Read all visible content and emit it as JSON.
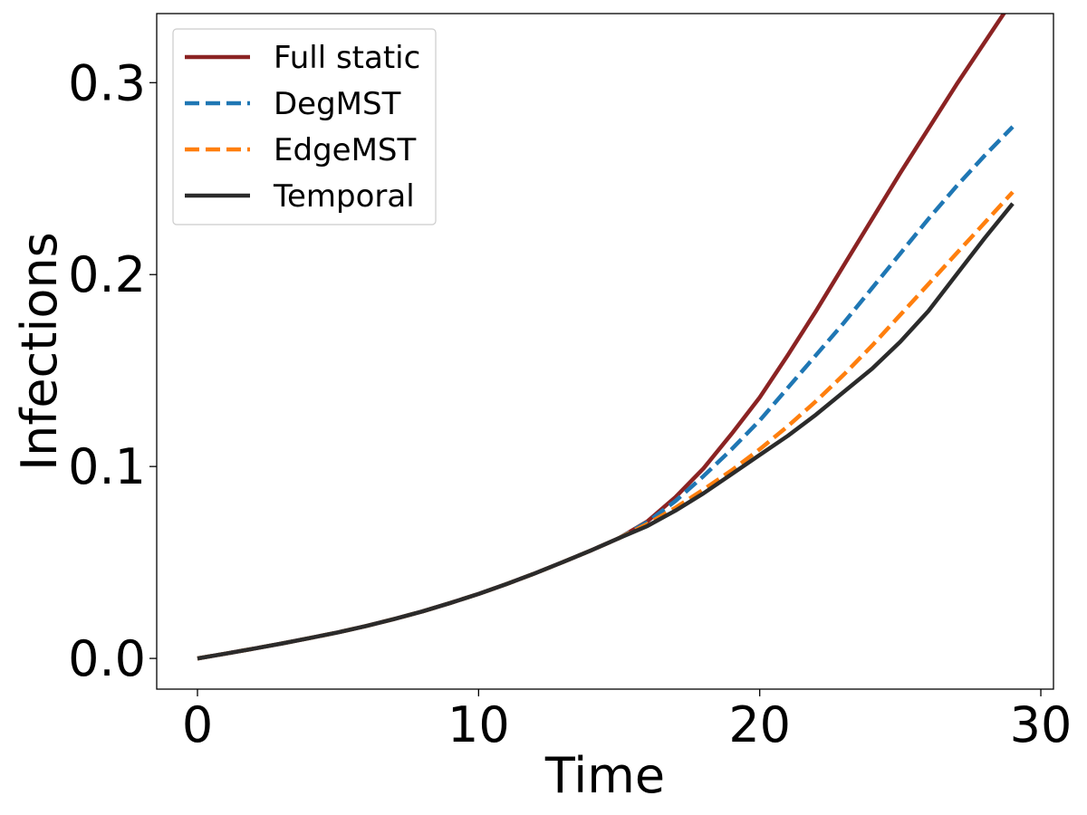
{
  "chart_data": {
    "type": "line",
    "title": "",
    "xlabel": "Time",
    "ylabel": "Infections",
    "xlim": [
      -1.45,
      30.45
    ],
    "ylim": [
      -0.016,
      0.336
    ],
    "x_ticks": [
      0,
      10,
      20,
      30
    ],
    "x_tick_labels": [
      "0",
      "10",
      "20",
      "30"
    ],
    "y_ticks": [
      0.0,
      0.1,
      0.2,
      0.3
    ],
    "y_tick_labels": [
      "0.0",
      "0.1",
      "0.2",
      "0.3"
    ],
    "grid": false,
    "legend_position": "top-left",
    "x": [
      0,
      1,
      2,
      3,
      4,
      5,
      6,
      7,
      8,
      9,
      10,
      11,
      12,
      13,
      14,
      15,
      16,
      17,
      18,
      19,
      20,
      21,
      22,
      23,
      24,
      25,
      26,
      27,
      28,
      29
    ],
    "series": [
      {
        "name": "Full static",
        "color": "#8b2323",
        "dash": "solid",
        "values": [
          0.0,
          0.0025,
          0.0051,
          0.0078,
          0.0106,
          0.0136,
          0.0169,
          0.0205,
          0.0245,
          0.0289,
          0.0336,
          0.0388,
          0.0443,
          0.0502,
          0.0563,
          0.0627,
          0.0714,
          0.084,
          0.099,
          0.117,
          0.136,
          0.158,
          0.181,
          0.205,
          0.229,
          0.253,
          0.276,
          0.299,
          0.321,
          0.343
        ]
      },
      {
        "name": "DegMST",
        "color": "#1f77b4",
        "dash": "dashed",
        "values": [
          0.0,
          0.0025,
          0.0051,
          0.0078,
          0.0106,
          0.0136,
          0.0169,
          0.0205,
          0.0245,
          0.0289,
          0.0336,
          0.0388,
          0.0443,
          0.0502,
          0.0563,
          0.0627,
          0.071,
          0.082,
          0.095,
          0.109,
          0.124,
          0.141,
          0.158,
          0.175,
          0.193,
          0.211,
          0.229,
          0.246,
          0.262,
          0.277
        ]
      },
      {
        "name": "EdgeMST",
        "color": "#ff7f0e",
        "dash": "dashed",
        "values": [
          0.0,
          0.0025,
          0.0051,
          0.0078,
          0.0106,
          0.0136,
          0.0169,
          0.0205,
          0.0245,
          0.0289,
          0.0336,
          0.0388,
          0.0443,
          0.0502,
          0.0563,
          0.0627,
          0.07,
          0.0785,
          0.088,
          0.098,
          0.109,
          0.121,
          0.134,
          0.148,
          0.163,
          0.179,
          0.195,
          0.211,
          0.227,
          0.243
        ]
      },
      {
        "name": "Temporal",
        "color": "#2b2b2b",
        "dash": "solid",
        "values": [
          0.0,
          0.0025,
          0.0051,
          0.0078,
          0.0106,
          0.0136,
          0.0169,
          0.0205,
          0.0245,
          0.0289,
          0.0336,
          0.0388,
          0.0443,
          0.0502,
          0.0563,
          0.0627,
          0.069,
          0.077,
          0.086,
          0.096,
          0.106,
          0.116,
          0.127,
          0.139,
          0.151,
          0.165,
          0.181,
          0.2,
          0.219,
          0.237
        ]
      }
    ]
  }
}
